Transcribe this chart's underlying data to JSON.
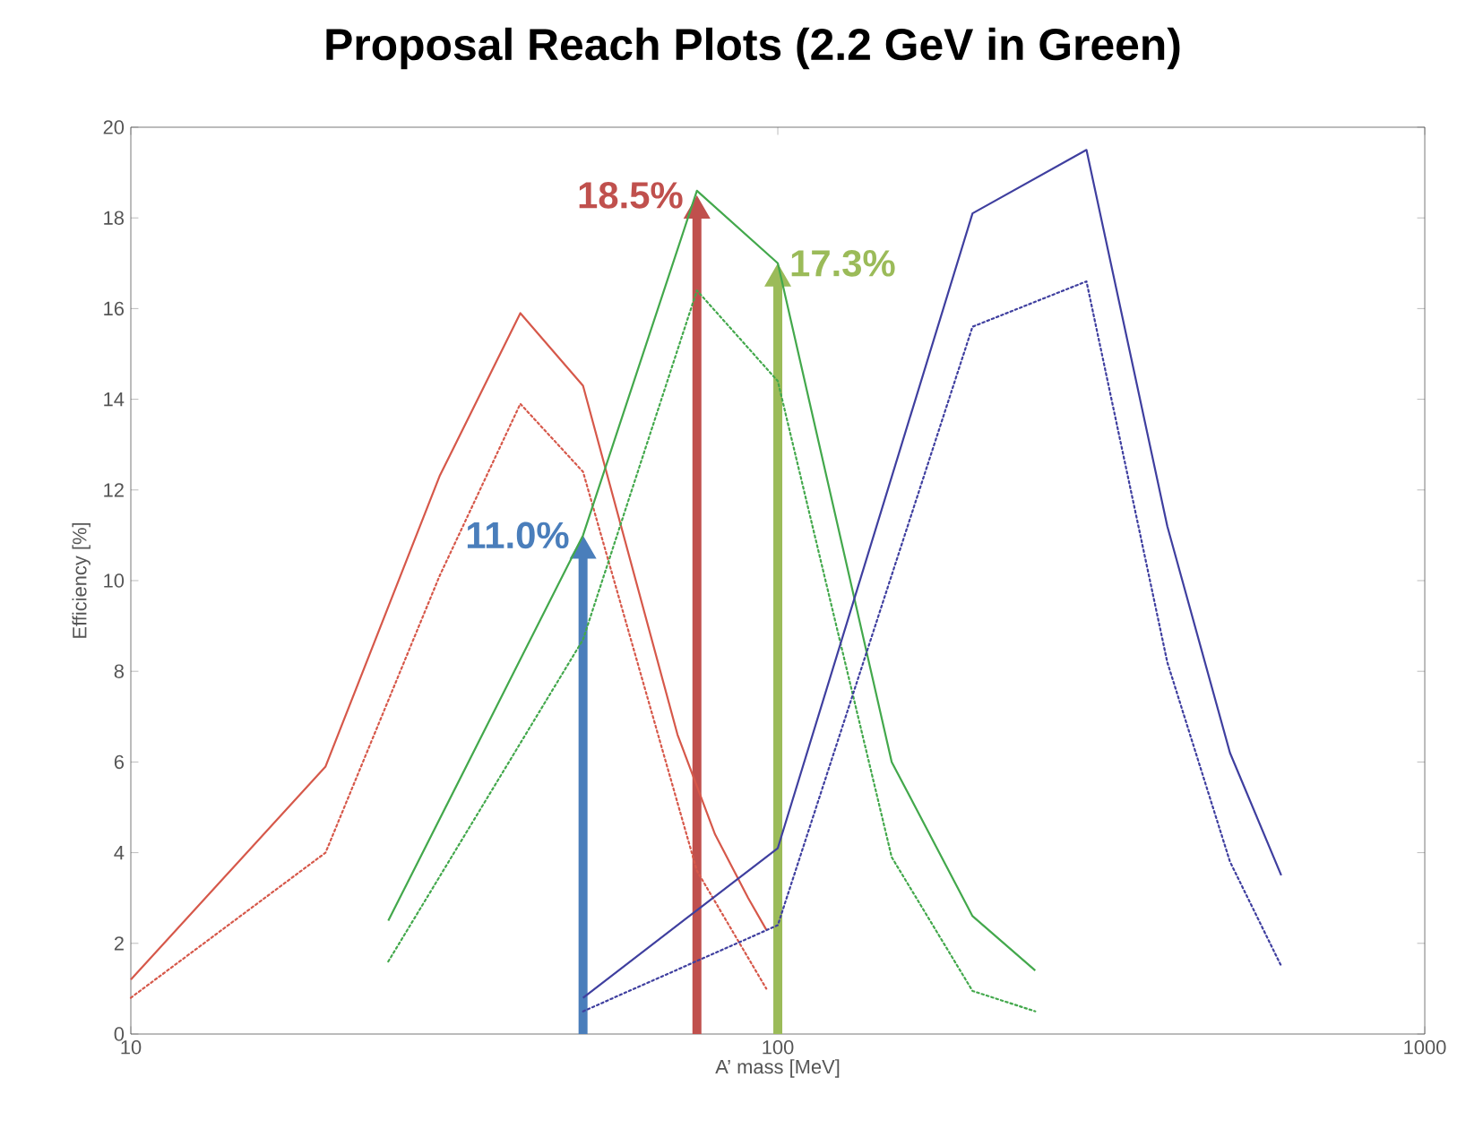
{
  "chart_data": {
    "type": "line",
    "title": "Proposal Reach Plots (2.2 GeV in Green)",
    "xlabel": "A’ mass [MeV]",
    "ylabel": "Efficiency [%]",
    "log": "x",
    "xlim": [
      10,
      1000
    ],
    "ylim": [
      0,
      20
    ],
    "xticks": [
      10,
      100,
      1000
    ],
    "yticks": [
      0,
      2,
      4,
      6,
      8,
      10,
      12,
      14,
      16,
      18,
      20
    ],
    "grid": false,
    "marker": "none",
    "series": [
      {
        "color": "#d6584a",
        "line_style": "solid",
        "x": [
          10,
          20,
          30,
          40,
          50,
          70,
          80,
          90,
          96
        ],
        "values": [
          1.2,
          5.9,
          12.3,
          15.9,
          14.3,
          6.6,
          4.4,
          3.0,
          2.3
        ]
      },
      {
        "color": "#d6584a",
        "line_style": "dotted",
        "x": [
          10,
          20,
          30,
          40,
          50,
          75,
          96
        ],
        "values": [
          0.8,
          4.0,
          10.1,
          13.9,
          12.4,
          3.6,
          1.0
        ]
      },
      {
        "color": "#43a84c",
        "line_style": "solid",
        "x": [
          25,
          50,
          75,
          100,
          150,
          200,
          250
        ],
        "values": [
          2.5,
          11.0,
          18.6,
          17.0,
          6.0,
          2.6,
          1.4
        ]
      },
      {
        "color": "#43a84c",
        "line_style": "dotted",
        "x": [
          25,
          50,
          75,
          100,
          150,
          200,
          250
        ],
        "values": [
          1.6,
          8.7,
          16.4,
          14.4,
          3.9,
          0.95,
          0.5
        ]
      },
      {
        "color": "#3f3f9f",
        "line_style": "solid",
        "x": [
          50,
          100,
          200,
          300,
          400,
          500,
          600
        ],
        "values": [
          0.8,
          4.1,
          18.1,
          19.5,
          11.2,
          6.2,
          3.5
        ]
      },
      {
        "color": "#3f3f9f",
        "line_style": "dotted",
        "x": [
          50,
          100,
          200,
          300,
          400,
          500,
          600
        ],
        "values": [
          0.5,
          2.4,
          15.6,
          16.6,
          8.2,
          3.8,
          1.5
        ]
      }
    ],
    "annotations": [
      {
        "text": "11.0%",
        "x": 50,
        "y": 11.0
      },
      {
        "text": "18.5%",
        "x": 75,
        "y": 18.5
      },
      {
        "text": "17.3%",
        "x": 100,
        "y": 17.0
      }
    ]
  }
}
